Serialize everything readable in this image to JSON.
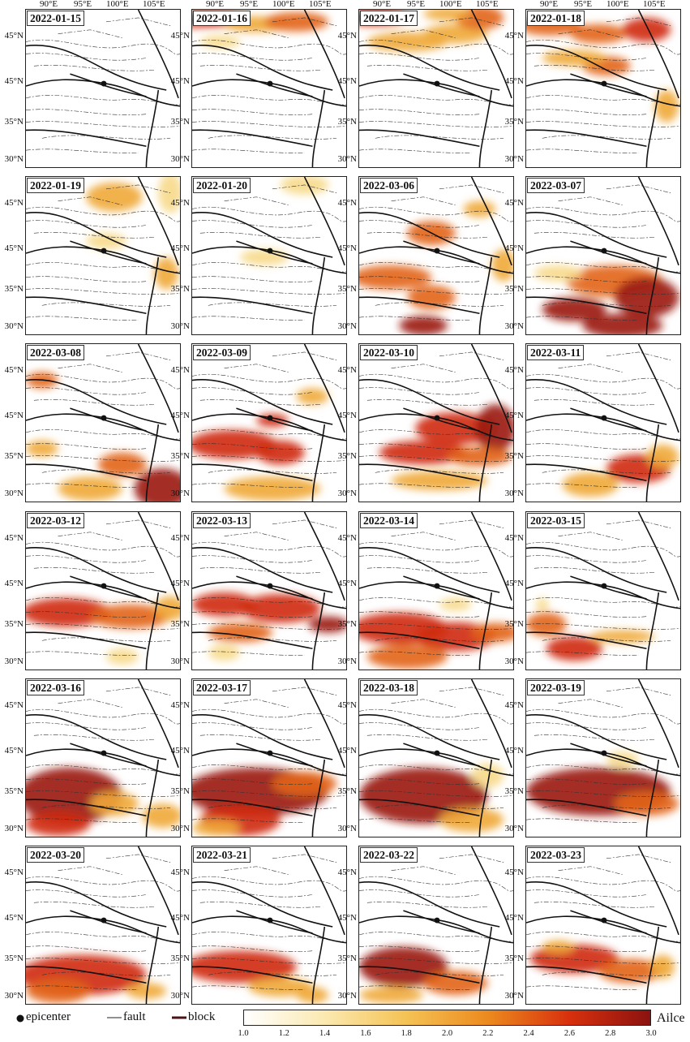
{
  "panels": [
    {
      "date": "2022-01-15",
      "blobs": []
    },
    {
      "date": "2022-01-16",
      "blobs": [
        [
          10,
          12,
          60,
          10,
          0.8
        ],
        [
          80,
          18,
          40,
          10,
          0.5
        ],
        [
          130,
          15,
          40,
          12,
          0.6
        ],
        [
          35,
          40,
          25,
          8,
          0.3
        ]
      ]
    },
    {
      "date": "2022-01-17",
      "blobs": [
        [
          20,
          10,
          40,
          10,
          0.8
        ],
        [
          60,
          40,
          50,
          12,
          0.5
        ],
        [
          120,
          30,
          40,
          12,
          0.5
        ],
        [
          150,
          10,
          30,
          15,
          0.6
        ],
        [
          110,
          5,
          30,
          8,
          0.4
        ]
      ]
    },
    {
      "date": "2022-01-18",
      "blobs": [
        [
          30,
          20,
          40,
          12,
          0.6
        ],
        [
          90,
          30,
          35,
          12,
          0.7
        ],
        [
          150,
          25,
          30,
          15,
          0.85
        ],
        [
          100,
          70,
          30,
          12,
          0.6
        ],
        [
          60,
          60,
          40,
          10,
          0.4
        ],
        [
          175,
          120,
          15,
          20,
          0.5
        ]
      ]
    },
    {
      "date": "2022-01-19",
      "blobs": [
        [
          110,
          25,
          35,
          18,
          0.4
        ],
        [
          180,
          20,
          15,
          25,
          0.3
        ],
        [
          100,
          80,
          25,
          10,
          0.3
        ],
        [
          175,
          120,
          15,
          20,
          0.4
        ]
      ]
    },
    {
      "date": "2022-01-20",
      "blobs": [
        [
          140,
          10,
          30,
          12,
          0.3
        ],
        [
          90,
          100,
          30,
          10,
          0.3
        ]
      ]
    },
    {
      "date": "2022-03-06",
      "blobs": [
        [
          90,
          70,
          30,
          15,
          0.55
        ],
        [
          150,
          40,
          20,
          10,
          0.5
        ],
        [
          40,
          125,
          50,
          15,
          0.6
        ],
        [
          90,
          150,
          30,
          15,
          0.7
        ],
        [
          80,
          185,
          30,
          12,
          0.9
        ],
        [
          180,
          110,
          15,
          20,
          0.4
        ]
      ]
    },
    {
      "date": "2022-03-07",
      "blobs": [
        [
          110,
          130,
          60,
          20,
          0.7
        ],
        [
          150,
          150,
          40,
          25,
          0.9
        ],
        [
          60,
          165,
          40,
          15,
          0.9
        ],
        [
          120,
          185,
          50,
          15,
          0.95
        ],
        [
          40,
          120,
          30,
          10,
          0.3
        ]
      ]
    },
    {
      "date": "2022-03-08",
      "blobs": [
        [
          20,
          45,
          20,
          10,
          0.6
        ],
        [
          20,
          130,
          20,
          10,
          0.4
        ],
        [
          120,
          150,
          30,
          15,
          0.6
        ],
        [
          170,
          180,
          35,
          25,
          0.95
        ],
        [
          80,
          180,
          40,
          15,
          0.5
        ]
      ]
    },
    {
      "date": "2022-03-09",
      "blobs": [
        [
          50,
          125,
          55,
          18,
          0.85
        ],
        [
          110,
          135,
          30,
          15,
          0.8
        ],
        [
          100,
          95,
          20,
          8,
          0.75
        ],
        [
          150,
          65,
          20,
          10,
          0.4
        ],
        [
          100,
          180,
          60,
          15,
          0.5
        ]
      ]
    },
    {
      "date": "2022-03-10",
      "blobs": [
        [
          120,
          105,
          50,
          20,
          0.75
        ],
        [
          170,
          105,
          25,
          30,
          0.9
        ],
        [
          80,
          135,
          55,
          15,
          0.8
        ],
        [
          150,
          140,
          40,
          12,
          0.6
        ],
        [
          100,
          170,
          60,
          12,
          0.5
        ]
      ]
    },
    {
      "date": "2022-03-11",
      "blobs": [
        [
          140,
          155,
          40,
          18,
          0.8
        ],
        [
          80,
          175,
          35,
          15,
          0.5
        ],
        [
          170,
          140,
          20,
          15,
          0.4
        ]
      ]
    },
    {
      "date": "2022-03-12",
      "blobs": [
        [
          50,
          125,
          55,
          18,
          0.8
        ],
        [
          130,
          130,
          50,
          15,
          0.6
        ],
        [
          180,
          120,
          20,
          15,
          0.4
        ],
        [
          120,
          180,
          20,
          10,
          0.3
        ]
      ]
    },
    {
      "date": "2022-03-13",
      "blobs": [
        [
          40,
          115,
          40,
          15,
          0.8
        ],
        [
          110,
          120,
          50,
          18,
          0.85
        ],
        [
          170,
          140,
          25,
          10,
          0.9
        ],
        [
          60,
          150,
          40,
          12,
          0.6
        ],
        [
          40,
          175,
          20,
          10,
          0.3
        ]
      ]
    },
    {
      "date": "2022-03-14",
      "blobs": [
        [
          50,
          145,
          60,
          20,
          0.85
        ],
        [
          120,
          155,
          50,
          18,
          0.8
        ],
        [
          170,
          150,
          30,
          12,
          0.7
        ],
        [
          120,
          115,
          20,
          8,
          0.3
        ],
        [
          60,
          180,
          50,
          15,
          0.6
        ]
      ]
    },
    {
      "date": "2022-03-15",
      "blobs": [
        [
          25,
          140,
          25,
          15,
          0.7
        ],
        [
          60,
          170,
          35,
          15,
          0.8
        ],
        [
          120,
          155,
          40,
          8,
          0.5
        ],
        [
          20,
          115,
          8,
          8,
          0.3
        ]
      ]
    },
    {
      "date": "2022-03-16",
      "blobs": [
        [
          55,
          145,
          65,
          35,
          0.95
        ],
        [
          110,
          155,
          30,
          15,
          0.5
        ],
        [
          40,
          180,
          40,
          15,
          0.75
        ],
        [
          170,
          170,
          25,
          15,
          0.35
        ]
      ]
    },
    {
      "date": "2022-03-17",
      "blobs": [
        [
          80,
          140,
          90,
          30,
          0.9
        ],
        [
          60,
          175,
          50,
          20,
          0.75
        ],
        [
          140,
          130,
          40,
          15,
          0.6
        ],
        [
          30,
          185,
          30,
          10,
          0.5
        ]
      ]
    },
    {
      "date": "2022-03-18",
      "blobs": [
        [
          80,
          145,
          80,
          35,
          0.95
        ],
        [
          160,
          120,
          20,
          15,
          0.3
        ],
        [
          140,
          175,
          40,
          15,
          0.5
        ]
      ]
    },
    {
      "date": "2022-03-19",
      "blobs": [
        [
          90,
          140,
          90,
          30,
          0.9
        ],
        [
          150,
          155,
          40,
          15,
          0.6
        ],
        [
          120,
          100,
          20,
          10,
          0.3
        ]
      ]
    },
    {
      "date": "2022-03-20",
      "blobs": [
        [
          70,
          160,
          80,
          25,
          0.8
        ],
        [
          40,
          180,
          40,
          15,
          0.6
        ],
        [
          150,
          180,
          25,
          10,
          0.4
        ]
      ]
    },
    {
      "date": "2022-03-21",
      "blobs": [
        [
          60,
          150,
          70,
          20,
          0.75
        ],
        [
          110,
          175,
          40,
          12,
          0.5
        ],
        [
          150,
          185,
          20,
          10,
          0.4
        ]
      ]
    },
    {
      "date": "2022-03-22",
      "blobs": [
        [
          55,
          150,
          55,
          25,
          0.95
        ],
        [
          120,
          170,
          40,
          15,
          0.6
        ],
        [
          40,
          185,
          40,
          10,
          0.5
        ]
      ]
    },
    {
      "date": "2022-03-23",
      "blobs": [
        [
          60,
          140,
          55,
          18,
          0.8
        ],
        [
          130,
          155,
          40,
          15,
          0.6
        ],
        [
          40,
          125,
          20,
          8,
          0.5
        ],
        [
          170,
          150,
          15,
          15,
          0.4
        ]
      ]
    }
  ],
  "lon_labels": [
    "90°E",
    "95°E",
    "100°E",
    "105°E"
  ],
  "lat_labels": [
    "45°N",
    "45°N",
    "35°N",
    "30°N"
  ],
  "legend": {
    "epicenter": "epicenter",
    "fault": "fault",
    "block": "block",
    "colorbar_label": "Ailce",
    "ticks": [
      "1.0",
      "1.2",
      "1.4",
      "1.6",
      "1.8",
      "2.0",
      "2.2",
      "2.4",
      "2.6",
      "2.8",
      "3.0"
    ],
    "colors": [
      "#ffffff",
      "#fbe9b0",
      "#f5c254",
      "#ec8a1e",
      "#d8300d",
      "#8b1210"
    ]
  }
}
